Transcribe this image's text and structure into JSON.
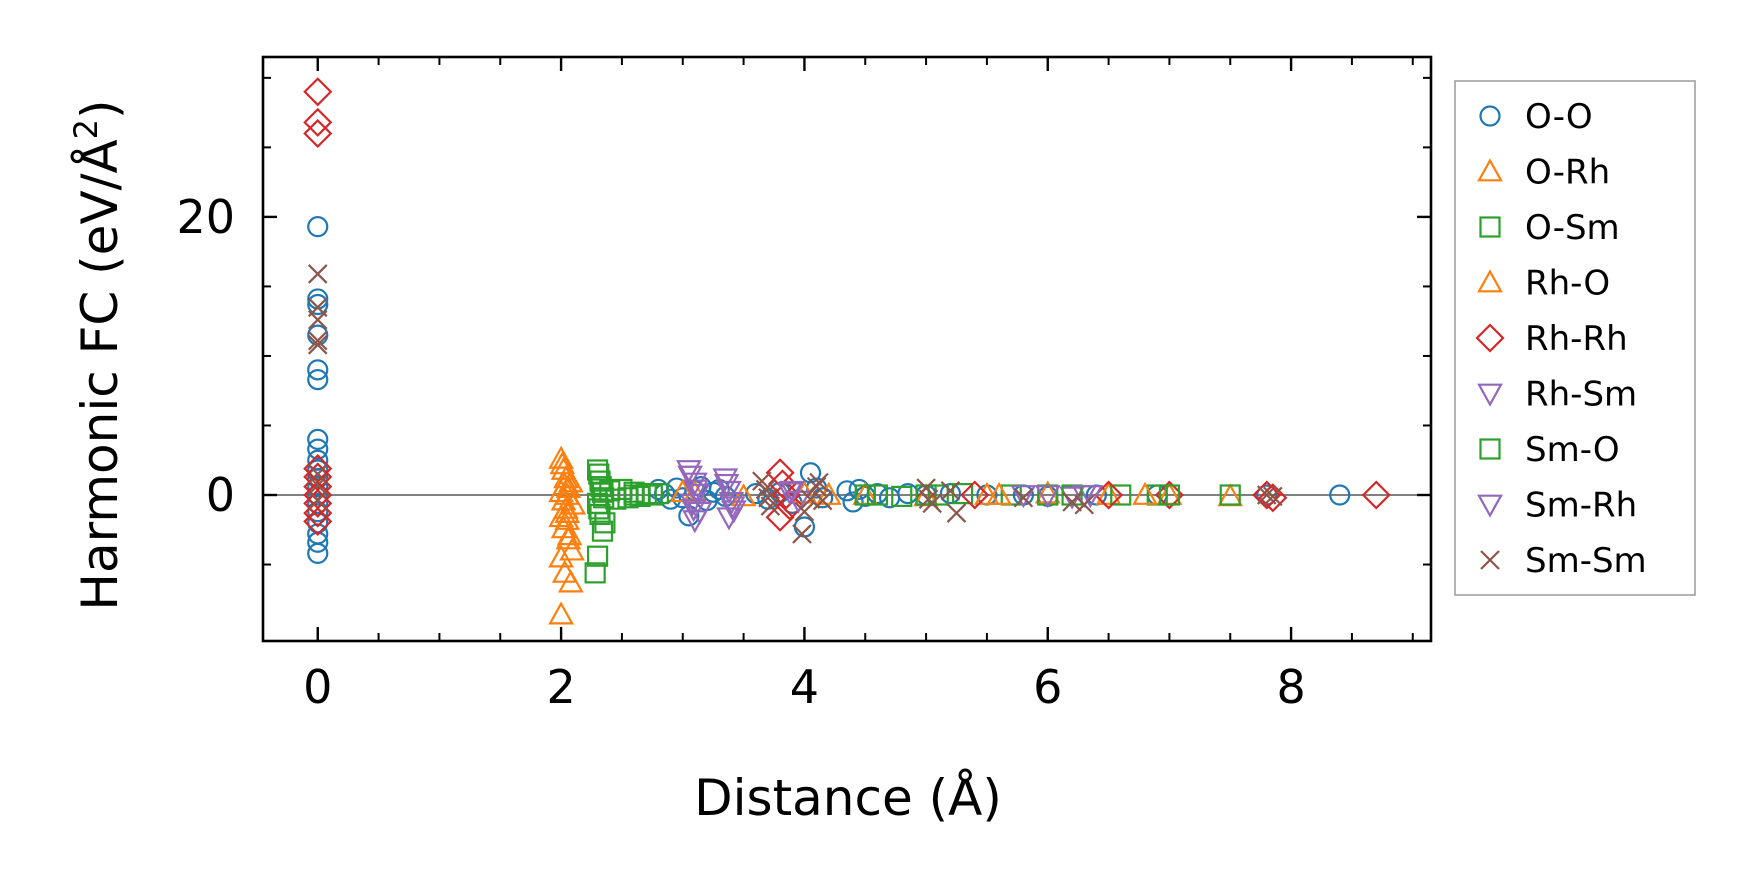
{
  "chart_data": {
    "type": "scatter",
    "xlabel": "Distance (Å)",
    "ylabel_main": "Harmonic FC (eV/Å",
    "ylabel_sup": "2",
    "ylabel_close": ")",
    "xlim": [
      -0.45,
      9.15
    ],
    "ylim": [
      -10.5,
      31.5
    ],
    "xticks": [
      0,
      2,
      4,
      6,
      8
    ],
    "xtick_labels": [
      "0",
      "2",
      "4",
      "6",
      "8"
    ],
    "xminor": [
      -0.5,
      0.5,
      1.0,
      1.5,
      2.5,
      3.0,
      3.5,
      4.5,
      5.0,
      5.5,
      6.5,
      7.0,
      7.5,
      8.5,
      9.0
    ],
    "yticks": [
      0,
      20
    ],
    "ytick_labels": [
      "0",
      "20"
    ],
    "yminor": [
      -5,
      5,
      10,
      15,
      25,
      30
    ],
    "zero_line": true,
    "legend_position": "right",
    "series": [
      {
        "name": "O-O",
        "marker": "circle",
        "color": "#1f77b4",
        "points": [
          [
            0,
            19.3
          ],
          [
            0,
            14.1
          ],
          [
            0,
            13.7
          ],
          [
            0,
            11.5
          ],
          [
            0,
            9.0
          ],
          [
            0,
            8.3
          ],
          [
            0,
            4.0
          ],
          [
            0,
            3.3
          ],
          [
            0,
            2.5
          ],
          [
            0,
            1.8
          ],
          [
            0,
            1.2
          ],
          [
            0,
            0.6
          ],
          [
            0,
            0.0
          ],
          [
            0,
            -0.6
          ],
          [
            0,
            -1.2
          ],
          [
            0,
            -2.0
          ],
          [
            0,
            -2.8
          ],
          [
            0,
            -3.4
          ],
          [
            0,
            -4.2
          ],
          [
            2.8,
            0.4
          ],
          [
            2.85,
            0.1
          ],
          [
            2.9,
            -0.3
          ],
          [
            2.95,
            0.5
          ],
          [
            3.0,
            -0.2
          ],
          [
            3.05,
            -1.5
          ],
          [
            3.1,
            0.3
          ],
          [
            3.15,
            0.6
          ],
          [
            3.2,
            -0.4
          ],
          [
            3.25,
            0.2
          ],
          [
            3.3,
            0.4
          ],
          [
            3.35,
            -0.1
          ],
          [
            3.6,
            0.1
          ],
          [
            3.7,
            -0.3
          ],
          [
            3.8,
            0.2
          ],
          [
            3.9,
            -0.6
          ],
          [
            4.0,
            -2.3
          ],
          [
            4.05,
            1.6
          ],
          [
            4.1,
            0.5
          ],
          [
            4.15,
            -0.2
          ],
          [
            4.35,
            0.3
          ],
          [
            4.4,
            -0.5
          ],
          [
            4.45,
            0.4
          ],
          [
            4.5,
            -0.1
          ],
          [
            4.6,
            0.1
          ],
          [
            4.7,
            -0.2
          ],
          [
            4.85,
            0.1
          ],
          [
            5.0,
            0.0
          ],
          [
            5.2,
            0.1
          ],
          [
            5.5,
            0.0
          ],
          [
            5.8,
            0.0
          ],
          [
            6.0,
            -0.1
          ],
          [
            6.4,
            0.0
          ],
          [
            6.9,
            0.0
          ],
          [
            7.8,
            0.0
          ],
          [
            8.4,
            0.0
          ]
        ]
      },
      {
        "name": "O-Rh",
        "marker": "triangle-up",
        "color": "#ff7f0e",
        "points": [
          [
            2.0,
            2.6
          ],
          [
            2.02,
            1.8
          ],
          [
            2.04,
            1.2
          ],
          [
            2.06,
            0.5
          ],
          [
            2.0,
            0.2
          ],
          [
            2.02,
            -0.4
          ],
          [
            2.04,
            -1.0
          ],
          [
            2.0,
            -1.6
          ],
          [
            2.02,
            -2.4
          ],
          [
            2.06,
            -3.2
          ],
          [
            2.0,
            -4.5
          ],
          [
            2.03,
            -5.6
          ],
          [
            2.08,
            -6.3
          ],
          [
            2.0,
            -8.6
          ],
          [
            2.05,
            -1.8
          ],
          [
            2.08,
            0.9
          ],
          [
            2.1,
            -0.7
          ],
          [
            3.0,
            0.2
          ],
          [
            3.5,
            -0.1
          ],
          [
            4.0,
            0.1
          ],
          [
            4.5,
            0.0
          ],
          [
            5.0,
            -0.1
          ],
          [
            5.5,
            0.0
          ],
          [
            6.0,
            0.1
          ],
          [
            6.5,
            0.0
          ],
          [
            7.0,
            0.0
          ],
          [
            7.5,
            -0.1
          ]
        ]
      },
      {
        "name": "O-Sm",
        "marker": "square",
        "color": "#2ca02c",
        "points": [
          [
            2.3,
            1.8
          ],
          [
            2.32,
            1.0
          ],
          [
            2.34,
            0.2
          ],
          [
            2.3,
            -0.6
          ],
          [
            2.32,
            -1.4
          ],
          [
            2.34,
            -2.6
          ],
          [
            2.3,
            -4.4
          ],
          [
            2.28,
            -5.6
          ],
          [
            2.4,
            0.3
          ],
          [
            2.45,
            -0.3
          ],
          [
            2.5,
            0.4
          ],
          [
            2.55,
            -0.2
          ],
          [
            2.6,
            0.2
          ],
          [
            2.65,
            -0.1
          ],
          [
            2.7,
            0.1
          ],
          [
            2.75,
            0.0
          ],
          [
            4.6,
            0.0
          ],
          [
            4.8,
            -0.1
          ],
          [
            5.0,
            0.0
          ],
          [
            5.3,
            0.1
          ],
          [
            5.7,
            0.0
          ],
          [
            6.0,
            0.0
          ],
          [
            6.6,
            0.0
          ],
          [
            6.9,
            0.0
          ],
          [
            7.5,
            0.0
          ]
        ]
      },
      {
        "name": "Rh-O",
        "marker": "triangle-up",
        "color": "#ff7f0e",
        "points": [
          [
            2.01,
            2.2
          ],
          [
            2.03,
            0.7
          ],
          [
            2.05,
            -1.3
          ],
          [
            2.07,
            -2.9
          ],
          [
            2.09,
            -4.0
          ],
          [
            2.05,
            0.0
          ],
          [
            3.1,
            0.1
          ],
          [
            4.2,
            0.0
          ],
          [
            5.6,
            0.0
          ],
          [
            6.8,
            0.0
          ]
        ]
      },
      {
        "name": "Rh-Rh",
        "marker": "diamond",
        "color": "#d62728",
        "points": [
          [
            0,
            29.0
          ],
          [
            0,
            26.8
          ],
          [
            0,
            26.0
          ],
          [
            0,
            1.9
          ],
          [
            0,
            1.3
          ],
          [
            0,
            0.6
          ],
          [
            0,
            0.0
          ],
          [
            0,
            -0.6
          ],
          [
            0,
            -1.3
          ],
          [
            0,
            -1.9
          ],
          [
            3.8,
            1.6
          ],
          [
            3.82,
            0.8
          ],
          [
            3.85,
            0.0
          ],
          [
            3.88,
            -0.8
          ],
          [
            3.8,
            -1.6
          ],
          [
            5.4,
            0.0
          ],
          [
            6.5,
            0.0
          ],
          [
            7.0,
            0.0
          ],
          [
            7.8,
            0.0
          ],
          [
            7.85,
            -0.2
          ],
          [
            8.7,
            0.0
          ]
        ]
      },
      {
        "name": "Rh-Sm",
        "marker": "triangle-down",
        "color": "#9467bd",
        "points": [
          [
            3.05,
            1.8
          ],
          [
            3.1,
            0.9
          ],
          [
            3.12,
            0.1
          ],
          [
            3.08,
            -0.6
          ],
          [
            3.14,
            -1.2
          ],
          [
            3.1,
            -1.8
          ],
          [
            3.35,
            1.2
          ],
          [
            3.38,
            0.3
          ],
          [
            3.4,
            -0.5
          ],
          [
            3.42,
            -1.1
          ],
          [
            3.38,
            -1.6
          ],
          [
            3.9,
            0.3
          ],
          [
            3.95,
            -0.4
          ],
          [
            5.8,
            0.0
          ],
          [
            6.2,
            -0.1
          ],
          [
            6.35,
            0.0
          ]
        ]
      },
      {
        "name": "Sm-O",
        "marker": "square",
        "color": "#2ca02c",
        "points": [
          [
            2.31,
            1.5
          ],
          [
            2.33,
            0.6
          ],
          [
            2.35,
            -0.2
          ],
          [
            2.31,
            -1.0
          ],
          [
            2.36,
            -2.0
          ],
          [
            2.6,
            0.0
          ],
          [
            2.8,
            0.1
          ],
          [
            4.5,
            0.0
          ],
          [
            5.1,
            0.0
          ],
          [
            6.2,
            0.0
          ],
          [
            7.0,
            0.0
          ]
        ]
      },
      {
        "name": "Sm-Rh",
        "marker": "triangle-down",
        "color": "#9467bd",
        "points": [
          [
            3.06,
            1.4
          ],
          [
            3.11,
            0.4
          ],
          [
            3.09,
            -1.0
          ],
          [
            3.36,
            0.8
          ],
          [
            3.41,
            -0.8
          ],
          [
            3.88,
            0.2
          ],
          [
            6.0,
            0.0
          ],
          [
            6.3,
            0.0
          ]
        ]
      },
      {
        "name": "Sm-Sm",
        "marker": "x",
        "color": "#8c564b",
        "points": [
          [
            0,
            15.9
          ],
          [
            0,
            13.5
          ],
          [
            0,
            12.6
          ],
          [
            0,
            11.1
          ],
          [
            0,
            10.8
          ],
          [
            0,
            1.5
          ],
          [
            0,
            0.7
          ],
          [
            0,
            -0.4
          ],
          [
            3.65,
            1.0
          ],
          [
            3.68,
            0.4
          ],
          [
            3.7,
            -0.2
          ],
          [
            3.72,
            -0.8
          ],
          [
            3.98,
            -2.8
          ],
          [
            4.0,
            -1.2
          ],
          [
            4.05,
            -0.3
          ],
          [
            4.1,
            0.6
          ],
          [
            4.12,
            0.9
          ],
          [
            4.15,
            -0.4
          ],
          [
            5.0,
            0.5
          ],
          [
            5.02,
            -0.3
          ],
          [
            5.05,
            -0.6
          ],
          [
            5.2,
            0.3
          ],
          [
            5.25,
            -1.3
          ],
          [
            5.8,
            -0.2
          ],
          [
            6.2,
            -0.5
          ],
          [
            6.3,
            -0.7
          ],
          [
            7.8,
            0.0
          ],
          [
            7.85,
            -0.1
          ]
        ]
      }
    ]
  }
}
